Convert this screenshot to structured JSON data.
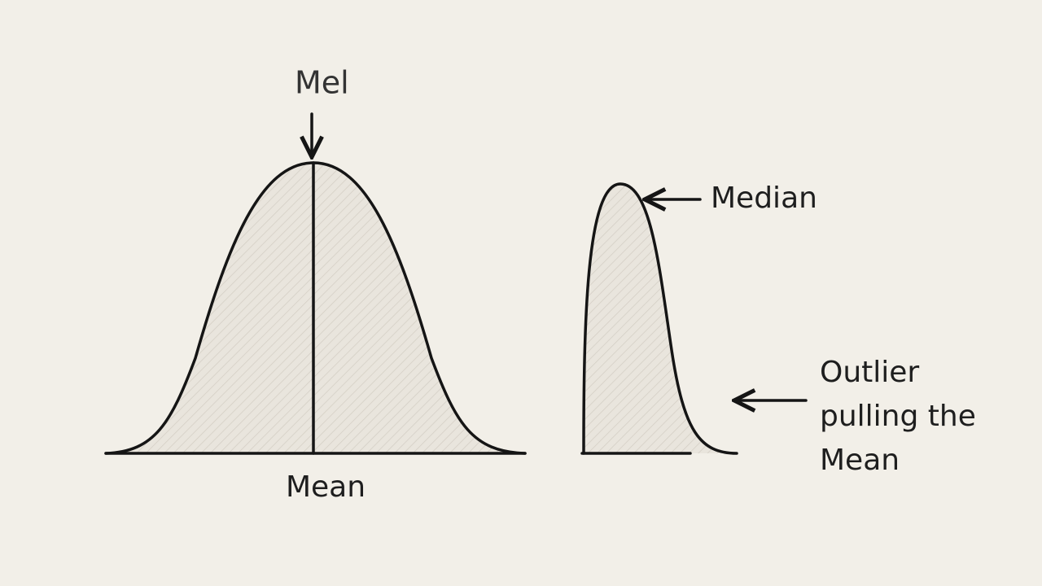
{
  "left": {
    "top_label": "Mel",
    "bottom_label": "Mean"
  },
  "right": {
    "peak_label": "Median",
    "tail_label_lines": [
      "Outlier",
      "pulling the",
      "Mean"
    ]
  }
}
